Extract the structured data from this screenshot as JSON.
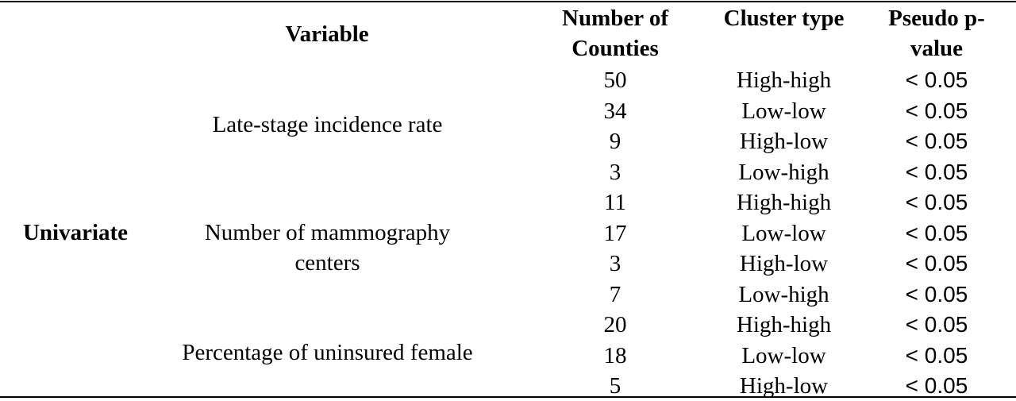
{
  "table": {
    "headers": {
      "variable": "Variable",
      "counties": "Number of Counties",
      "cluster": "Cluster type",
      "pvalue": "Pseudo p-value"
    },
    "group": "Univariate",
    "variables": [
      "Late-stage incidence rate",
      "Number of mammography centers",
      "Percentage of uninsured female"
    ],
    "rows": [
      {
        "n": "50",
        "type": "High-high",
        "p": "< 0.05"
      },
      {
        "n": "34",
        "type": "Low-low",
        "p": "< 0.05"
      },
      {
        "n": "9",
        "type": "High-low",
        "p": "< 0.05"
      },
      {
        "n": "3",
        "type": "Low-high",
        "p": "< 0.05"
      },
      {
        "n": "11",
        "type": "High-high",
        "p": "< 0.05"
      },
      {
        "n": "17",
        "type": "Low-low",
        "p": "< 0.05"
      },
      {
        "n": "3",
        "type": "High-low",
        "p": "< 0.05"
      },
      {
        "n": "7",
        "type": "Low-high",
        "p": "< 0.05"
      },
      {
        "n": "20",
        "type": "High-high",
        "p": "< 0.05"
      },
      {
        "n": "18",
        "type": "Low-low",
        "p": "< 0.05"
      },
      {
        "n": "5",
        "type": "High-low",
        "p": "< 0.05"
      }
    ]
  }
}
